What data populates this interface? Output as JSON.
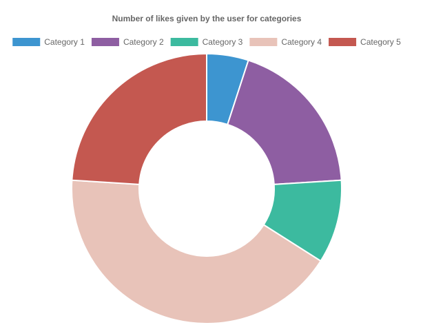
{
  "chart_data": {
    "type": "doughnut",
    "title": "Number of likes given by the user for categories",
    "legend_position": "top",
    "categories": [
      "Category 1",
      "Category 2",
      "Category 3",
      "Category 4",
      "Category 5"
    ],
    "values": [
      5,
      19,
      10,
      42,
      24
    ],
    "colors": [
      "#3d95d0",
      "#8e5ea2",
      "#3cba9f",
      "#e8c3b9",
      "#c45850"
    ]
  }
}
